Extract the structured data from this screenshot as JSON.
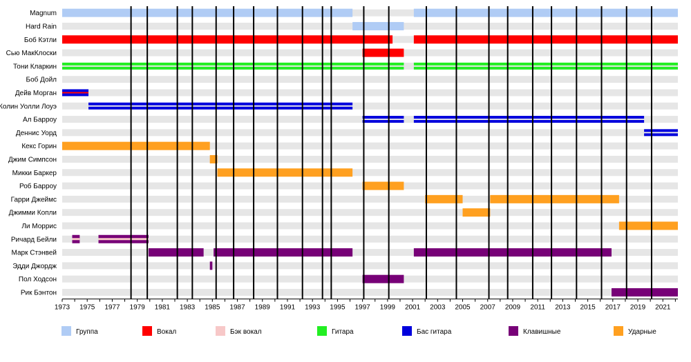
{
  "chart_data": {
    "type": "timeline",
    "x_range": [
      1973,
      2022.2
    ],
    "x_ticks": [
      1973,
      1975,
      1977,
      1979,
      1981,
      1983,
      1985,
      1987,
      1989,
      1991,
      1993,
      1995,
      1997,
      1999,
      2001,
      2003,
      2005,
      2007,
      2009,
      2011,
      2013,
      2015,
      2017,
      2019,
      2021
    ],
    "album_years": [
      1978.5,
      1979.8,
      1982.2,
      1983.4,
      1985.3,
      1986.7,
      1988.3,
      1990.2,
      1992.2,
      1993.8,
      1994.5,
      1997.1,
      1999.1,
      2002.1,
      2004.5,
      2007.1,
      2008.6,
      2010.6,
      2012.1,
      2014.1,
      2016.1,
      2018.1,
      2020.1
    ],
    "categories": [
      {
        "key": "group",
        "label": "Группа",
        "color": "#b0ccf5",
        "style": "solid"
      },
      {
        "key": "vocal",
        "label": "Вокал",
        "color": "#ff0000",
        "style": "solid"
      },
      {
        "key": "backing",
        "label": "Бэк вокал",
        "color": "#f7c8c8",
        "style": "stripe"
      },
      {
        "key": "guitar",
        "label": "Гитара",
        "color": "#22ee22",
        "style": "double"
      },
      {
        "key": "bass",
        "label": "Бас гитара",
        "color": "#0000dd",
        "style": "double"
      },
      {
        "key": "keys",
        "label": "Клавишные",
        "color": "#770077",
        "style": "solid"
      },
      {
        "key": "drums",
        "label": "Ударные",
        "color": "#ffa020",
        "style": "solid"
      }
    ],
    "rows": [
      {
        "name": "Magnum",
        "segments": [
          {
            "start": 1973,
            "end": 1996.2,
            "role": "group"
          },
          {
            "start": 2001.1,
            "end": 2022.2,
            "role": "group"
          }
        ]
      },
      {
        "name": "Hard Rain",
        "segments": [
          {
            "start": 1996.2,
            "end": 2000.3,
            "role": "group"
          }
        ]
      },
      {
        "name": "Боб Кэтли",
        "segments": [
          {
            "start": 1973,
            "end": 1999.4,
            "role": "vocal"
          },
          {
            "start": 2001.1,
            "end": 2022.2,
            "role": "vocal"
          }
        ]
      },
      {
        "name": "Сью МакКлоски",
        "segments": [
          {
            "start": 1997.0,
            "end": 2000.3,
            "role": "vocal"
          }
        ]
      },
      {
        "name": "Тони Кларкин",
        "segments": [
          {
            "start": 1973,
            "end": 2000.3,
            "role": "guitar"
          },
          {
            "start": 2001.1,
            "end": 2022.2,
            "role": "guitar"
          }
        ]
      },
      {
        "name": "Боб Дойл",
        "segments": []
      },
      {
        "name": "Дейв Морган",
        "segments": [
          {
            "start": 1973,
            "end": 1975.1,
            "role": "bass",
            "overlay": "vocal"
          }
        ]
      },
      {
        "name": "Колин Уолли Лоуэ",
        "segments": [
          {
            "start": 1975.1,
            "end": 1996.2,
            "role": "bass"
          }
        ]
      },
      {
        "name": "Ал Барроу",
        "segments": [
          {
            "start": 1997.0,
            "end": 2000.3,
            "role": "bass"
          },
          {
            "start": 2001.1,
            "end": 2019.5,
            "role": "bass"
          }
        ]
      },
      {
        "name": "Деннис Уорд",
        "segments": [
          {
            "start": 2019.5,
            "end": 2022.2,
            "role": "bass"
          }
        ]
      },
      {
        "name": "Кекс Горин",
        "segments": [
          {
            "start": 1973,
            "end": 1984.8,
            "role": "drums"
          }
        ]
      },
      {
        "name": "Джим Симпсон",
        "segments": [
          {
            "start": 1984.8,
            "end": 1985.4,
            "role": "drums"
          }
        ]
      },
      {
        "name": "Микки Баркер",
        "segments": [
          {
            "start": 1985.4,
            "end": 1996.2,
            "role": "drums"
          }
        ]
      },
      {
        "name": "Роб Барроу",
        "segments": [
          {
            "start": 1997.0,
            "end": 2000.3,
            "role": "drums"
          }
        ]
      },
      {
        "name": "Гарри Джеймс",
        "segments": [
          {
            "start": 2002.0,
            "end": 2005.0,
            "role": "drums"
          },
          {
            "start": 2007.2,
            "end": 2017.5,
            "role": "drums"
          }
        ]
      },
      {
        "name": "Джимми Копли",
        "segments": [
          {
            "start": 2005.0,
            "end": 2007.2,
            "role": "drums"
          }
        ]
      },
      {
        "name": "Ли Моррис",
        "segments": [
          {
            "start": 2017.5,
            "end": 2022.2,
            "role": "drums"
          }
        ]
      },
      {
        "name": "Ричард Бейли",
        "segments": [
          {
            "start": 1973.8,
            "end": 1974.4,
            "role": "keys",
            "overlay": "backing"
          },
          {
            "start": 1975.9,
            "end": 1979.9,
            "role": "keys",
            "overlay": "backing"
          }
        ]
      },
      {
        "name": "Марк Стэнвей",
        "segments": [
          {
            "start": 1979.9,
            "end": 1984.3,
            "role": "keys"
          },
          {
            "start": 1985.1,
            "end": 1996.2,
            "role": "keys"
          },
          {
            "start": 2001.1,
            "end": 2016.9,
            "role": "keys"
          }
        ]
      },
      {
        "name": "Эдди Джордж",
        "segments": [
          {
            "start": 1984.8,
            "end": 1985.0,
            "role": "keys"
          }
        ]
      },
      {
        "name": "Пол Ходсон",
        "segments": [
          {
            "start": 1997.0,
            "end": 2000.3,
            "role": "keys"
          }
        ]
      },
      {
        "name": "Рик Бэнтон",
        "segments": [
          {
            "start": 2016.9,
            "end": 2022.2,
            "role": "keys"
          }
        ]
      }
    ]
  }
}
